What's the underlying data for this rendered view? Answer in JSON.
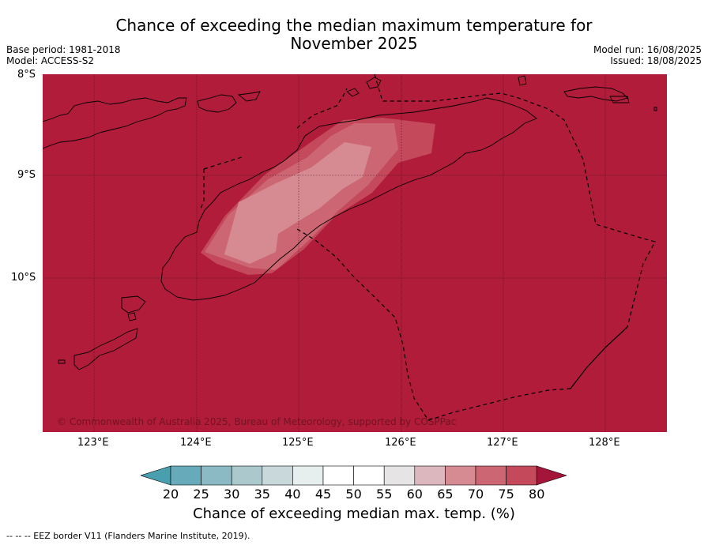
{
  "title": {
    "line1": "Chance of exceeding the median maximum temperature for",
    "line2": "November 2025"
  },
  "meta": {
    "base_period": "Base period: 1981-2018",
    "model": "Model: ACCESS-S2",
    "model_run": "Model run: 16/08/2025",
    "issued": "Issued: 18/08/2025"
  },
  "map": {
    "lat_labels": [
      "8°S",
      "9°S",
      "10°S"
    ],
    "lon_labels": [
      "123°E",
      "124°E",
      "125°E",
      "126°E",
      "127°E",
      "128°E"
    ],
    "copyright": "© Commonwealth of Australia 2025, Bureau of Meteorology, supported by COSPPac",
    "colors": {
      "band_80_plus": "#b01c39",
      "band_75_80": "#c3495b",
      "band_70_75": "#cd6673",
      "band_65_70": "#d68a92"
    }
  },
  "colorbar": {
    "ticks": [
      "20",
      "25",
      "30",
      "35",
      "40",
      "45",
      "50",
      "55",
      "60",
      "65",
      "70",
      "75",
      "80"
    ],
    "colors": [
      "#4a9fae",
      "#67abbb",
      "#8cbac4",
      "#abc9cd",
      "#c8d8db",
      "#e6eeee",
      "#ffffff",
      "#ffffff",
      "#e6e4e4",
      "#ddb7be",
      "#d68a92",
      "#cd6673",
      "#c3495b",
      "#a3163a"
    ],
    "label": "Chance of exceeding median max. temp. (%)"
  },
  "footnote": "--  --  -- EEZ border V11 (Flanders Marine Institute, 2019)."
}
